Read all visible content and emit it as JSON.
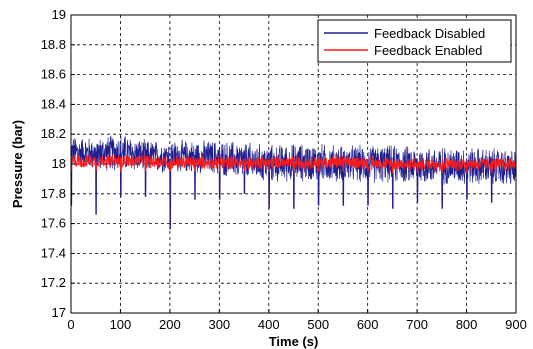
{
  "chart_data": {
    "type": "line",
    "title": "",
    "xlabel": "Time (s)",
    "ylabel": "Pressure (bar)",
    "xlim": [
      0,
      900
    ],
    "ylim": [
      17,
      19
    ],
    "xticks": [
      0,
      100,
      200,
      300,
      400,
      500,
      600,
      700,
      800,
      900
    ],
    "yticks": [
      17,
      17.2,
      17.4,
      17.6,
      17.8,
      18,
      18.2,
      18.4,
      18.6,
      18.8,
      19
    ],
    "xtick_labels": [
      "0",
      "100",
      "200",
      "300",
      "400",
      "500",
      "600",
      "700",
      "800",
      "900"
    ],
    "ytick_labels": [
      "17",
      "17.2",
      "17.4",
      "17.6",
      "17.8",
      "18",
      "18.2",
      "18.4",
      "18.6",
      "18.8",
      "19"
    ],
    "grid": true,
    "grid_style": "dashed",
    "legend_position": "top-right",
    "series": [
      {
        "name": "Feedback Disabled",
        "color": "#1f1f8f",
        "x": [
          0,
          50,
          100,
          150,
          200,
          250,
          300,
          350,
          400,
          450,
          500,
          550,
          600,
          650,
          700,
          750,
          800,
          850,
          900
        ],
        "mean": [
          18.08,
          18.07,
          18.08,
          18.05,
          18.05,
          18.05,
          18.04,
          18.02,
          18.0,
          18.01,
          18.01,
          18.0,
          18.0,
          18.0,
          17.99,
          17.99,
          17.99,
          17.98,
          17.97
        ],
        "band": [
          0.12,
          0.12,
          0.14,
          0.12,
          0.12,
          0.12,
          0.13,
          0.14,
          0.14,
          0.14,
          0.14,
          0.14,
          0.14,
          0.14,
          0.14,
          0.14,
          0.14,
          0.14,
          0.14
        ],
        "max": [
          18.22,
          18.2,
          18.26,
          18.22,
          18.2,
          18.2,
          18.19,
          18.16,
          18.18,
          18.14,
          18.18,
          18.12,
          18.14,
          18.12,
          18.14,
          18.12,
          18.15,
          18.14,
          18.12
        ],
        "min": [
          17.72,
          17.66,
          17.78,
          17.78,
          17.56,
          17.76,
          17.76,
          17.8,
          17.7,
          17.7,
          17.72,
          17.72,
          17.72,
          17.7,
          17.74,
          17.7,
          17.76,
          17.74,
          17.72
        ]
      },
      {
        "name": "Feedback Enabled",
        "color": "#ff1a1a",
        "x": [
          0,
          50,
          100,
          150,
          200,
          250,
          300,
          350,
          400,
          450,
          500,
          550,
          600,
          650,
          700,
          750,
          800,
          850,
          900
        ],
        "mean": [
          18.02,
          18.02,
          18.02,
          18.02,
          18.01,
          18.01,
          18.01,
          18.01,
          18.01,
          18.01,
          18.01,
          18.01,
          18.01,
          18.0,
          18.0,
          18.0,
          18.0,
          18.0,
          18.0
        ],
        "band": [
          0.05,
          0.05,
          0.05,
          0.05,
          0.05,
          0.05,
          0.05,
          0.05,
          0.05,
          0.05,
          0.05,
          0.05,
          0.05,
          0.05,
          0.05,
          0.05,
          0.05,
          0.05,
          0.05
        ],
        "max": [
          18.08,
          18.08,
          18.08,
          18.08,
          18.08,
          18.08,
          18.08,
          18.08,
          18.08,
          18.07,
          18.07,
          18.07,
          18.07,
          18.07,
          18.07,
          18.07,
          18.07,
          18.07,
          18.07
        ],
        "min": [
          17.95,
          17.95,
          17.95,
          17.95,
          17.95,
          17.95,
          17.95,
          17.95,
          17.95,
          17.95,
          17.95,
          17.95,
          17.95,
          17.94,
          17.94,
          17.94,
          17.94,
          17.94,
          17.94
        ]
      }
    ]
  }
}
